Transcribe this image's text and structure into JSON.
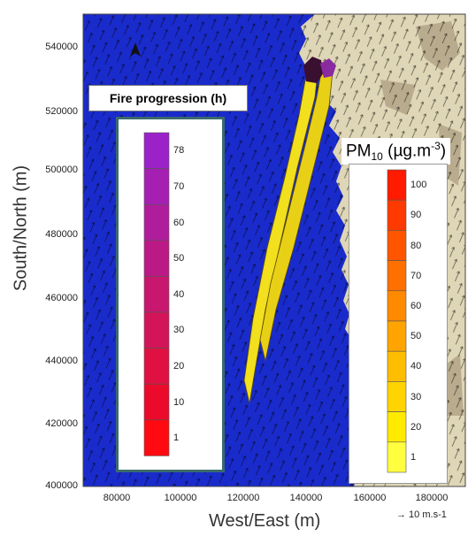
{
  "axes": {
    "y_title": "South/North (m)",
    "x_title": "West/East (m)",
    "y_ticks": [
      "540000",
      "520000",
      "500000",
      "480000",
      "460000",
      "440000",
      "420000",
      "400000"
    ],
    "x_ticks": [
      "80000",
      "100000",
      "120000",
      "140000",
      "160000",
      "180000"
    ]
  },
  "fire_legend": {
    "title": "Fire progression (h)",
    "labels": [
      "78",
      "70",
      "60",
      "50",
      "40",
      "30",
      "20",
      "10",
      "1"
    ],
    "colors": [
      "#9b21c9",
      "#a61fb3",
      "#b01d9c",
      "#bb1a86",
      "#c7176e",
      "#d41458",
      "#e01042",
      "#ec0a2c",
      "#ff0a10"
    ]
  },
  "pm_legend": {
    "title_main": "PM",
    "title_sub": "10",
    "title_units": " (µg.m",
    "title_sup": "-3",
    "title_end": ")",
    "labels": [
      "100",
      "90",
      "80",
      "70",
      "60",
      "50",
      "40",
      "30",
      "20",
      "1"
    ],
    "colors": [
      "#ff1a00",
      "#ff3a00",
      "#ff5500",
      "#ff7000",
      "#ff8a00",
      "#ffa400",
      "#ffbd00",
      "#ffd400",
      "#ffea00",
      "#ffff40"
    ]
  },
  "wind_reference": "→ 10 m.s-1",
  "colors": {
    "sea": "#1a2bcc",
    "land": "#ded6b6",
    "plume": "#f2df1e"
  }
}
